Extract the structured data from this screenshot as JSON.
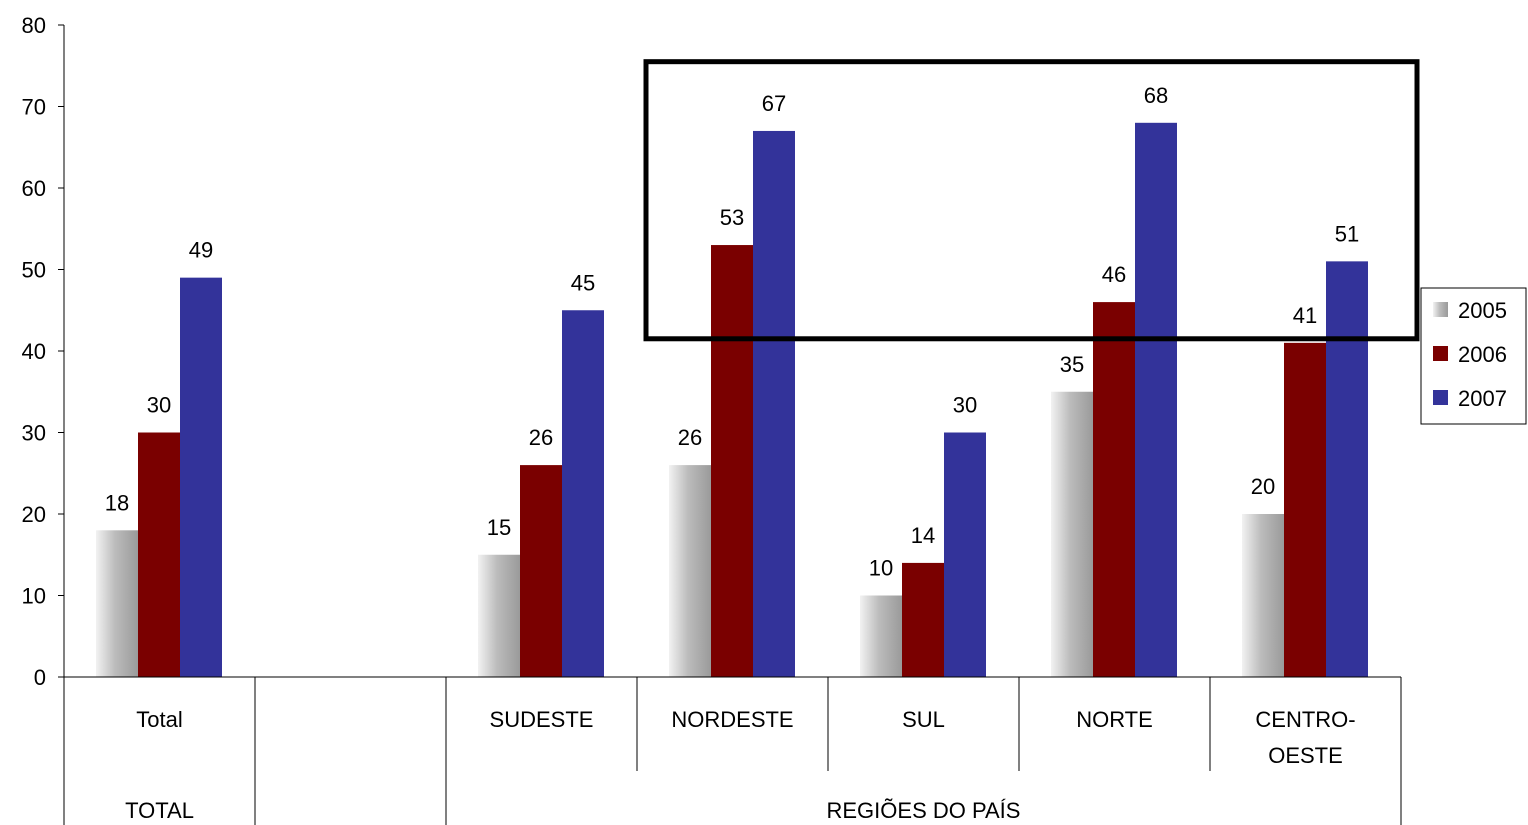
{
  "chart_data": {
    "type": "bar",
    "categories": [
      "Total",
      "",
      "SUDESTE",
      "NORDESTE",
      "SUL",
      "NORTE",
      "CENTRO-OESTE"
    ],
    "category_label_lines": [
      [
        "Total"
      ],
      [
        ""
      ],
      [
        "SUDESTE"
      ],
      [
        "NORDESTE"
      ],
      [
        "SUL"
      ],
      [
        "NORTE"
      ],
      [
        "CENTRO-",
        "OESTE"
      ]
    ],
    "groups": [
      {
        "label": "TOTAL",
        "from": 0,
        "to": 0
      },
      {
        "label": "REGIÕES DO PAÍS",
        "from": 2,
        "to": 6
      }
    ],
    "series": [
      {
        "name": "2005",
        "color": "#b4b4b4",
        "values": [
          18,
          null,
          15,
          26,
          10,
          35,
          20
        ]
      },
      {
        "name": "2006",
        "color": "#7a0000",
        "values": [
          30,
          null,
          26,
          53,
          14,
          46,
          41
        ]
      },
      {
        "name": "2007",
        "color": "#33339a",
        "values": [
          49,
          null,
          45,
          67,
          30,
          68,
          51
        ]
      }
    ],
    "ylim": [
      0,
      80
    ],
    "yticks": [
      "0",
      "10",
      "20",
      "30",
      "40",
      "50",
      "60",
      "70",
      "80"
    ],
    "legend_position": "right",
    "highlight_box": {
      "y_from": 41.5,
      "y_to": 75.5,
      "categories": [
        "NORDESTE",
        "NORTE",
        "CENTRO-OESTE"
      ]
    }
  }
}
